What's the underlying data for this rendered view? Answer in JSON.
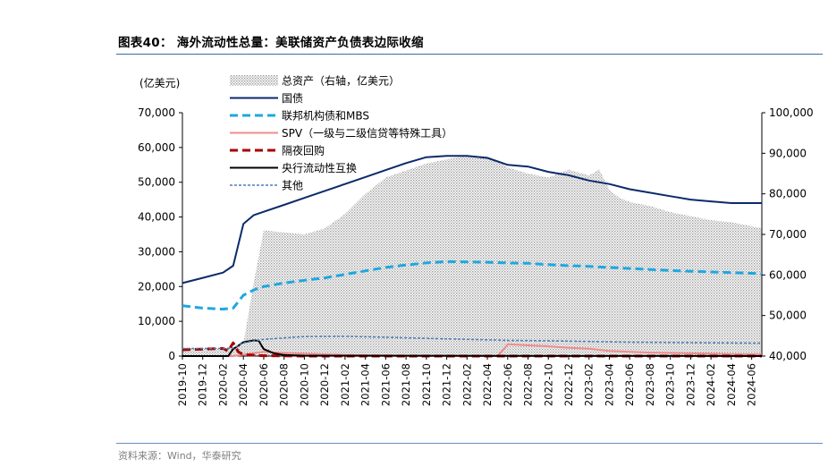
{
  "header": {
    "title": "图表40： 海外流动性总量：美联储资产负债表边际收缩",
    "source": "资料来源：Wind，华泰研究"
  },
  "chart_data": {
    "type": "line",
    "left_axis_label": "(亿美元)",
    "ylim": [
      0,
      70000
    ],
    "ylim_right": [
      40000,
      100000
    ],
    "yticks": [
      "0",
      "10,000",
      "20,000",
      "30,000",
      "40,000",
      "50,000",
      "60,000",
      "70,000"
    ],
    "yticks_right": [
      "40,000",
      "50,000",
      "60,000",
      "70,000",
      "80,000",
      "90,000",
      "100,000"
    ],
    "x_tick_labels": [
      "2019-10",
      "2019-12",
      "2020-02",
      "2020-04",
      "2020-06",
      "2020-08",
      "2020-10",
      "2020-12",
      "2021-02",
      "2021-04",
      "2021-06",
      "2021-08",
      "2021-10",
      "2021-12",
      "2022-02",
      "2022-04",
      "2022-06",
      "2022-08",
      "2022-10",
      "2022-12",
      "2023-02",
      "2023-04",
      "2023-06",
      "2023-08",
      "2023-10",
      "2023-12",
      "2024-02",
      "2024-04",
      "2024-06"
    ],
    "legend": {
      "placement": "top-left",
      "entries": [
        {
          "label": "总资产（右轴，亿美元）",
          "style": "area-dotted",
          "color": "#bdbdbd"
        },
        {
          "label": "国债",
          "style": "solid",
          "color": "#0b2a6b"
        },
        {
          "label": "联邦机构债和MBS",
          "style": "dashed",
          "color": "#1ea7e0"
        },
        {
          "label": "SPV（一级与二级信贷等特殊工具）",
          "style": "solid",
          "color": "#f28b8b"
        },
        {
          "label": "隔夜回购",
          "style": "dashed",
          "color": "#a50000"
        },
        {
          "label": "央行流动性互换",
          "style": "solid",
          "color": "#000000"
        },
        {
          "label": "其他",
          "style": "dotted",
          "color": "#4f7fb5"
        }
      ]
    },
    "x_months": [
      0,
      5,
      10,
      15,
      20,
      25,
      30,
      35,
      40,
      45,
      50,
      55,
      57
    ],
    "series": [
      {
        "name": "总资产（右轴，亿美元）",
        "axis": "right",
        "type": "area",
        "color": "#bdbdbd",
        "x": [
          0,
          3,
          5,
          6,
          7,
          8,
          10,
          12,
          14,
          16,
          18,
          20,
          24,
          28,
          30,
          31,
          32,
          34,
          36,
          38,
          40,
          41,
          42,
          43,
          44,
          46,
          48,
          50,
          52,
          54,
          56,
          57
        ],
        "values": [
          42000,
          42000,
          42000,
          43000,
          58000,
          71000,
          70500,
          70000,
          71500,
          75000,
          80000,
          84000,
          87500,
          89500,
          89200,
          88000,
          86500,
          85000,
          84000,
          86000,
          84500,
          86000,
          81000,
          79000,
          78000,
          77000,
          75500,
          74500,
          73500,
          73000,
          72000,
          71500
        ]
      },
      {
        "name": "国债",
        "axis": "left",
        "type": "line",
        "color": "#0b2a6b",
        "x": [
          0,
          2,
          4,
          5,
          6,
          7,
          8,
          10,
          12,
          14,
          16,
          18,
          20,
          22,
          24,
          26,
          28,
          30,
          32,
          34,
          36,
          38,
          40,
          42,
          44,
          46,
          48,
          50,
          52,
          54,
          56,
          57
        ],
        "values": [
          21000,
          22500,
          24000,
          26000,
          38000,
          40500,
          41500,
          43500,
          45500,
          47500,
          49500,
          51500,
          53500,
          55500,
          57200,
          57600,
          57600,
          57000,
          55000,
          54500,
          53000,
          52000,
          50500,
          49500,
          48000,
          47000,
          46000,
          45000,
          44500,
          44000,
          44000,
          44000
        ]
      },
      {
        "name": "联邦机构债和MBS",
        "axis": "left",
        "type": "line",
        "color": "#1ea7e0",
        "x": [
          0,
          2,
          4,
          5,
          6,
          7,
          8,
          10,
          12,
          14,
          16,
          18,
          20,
          22,
          24,
          26,
          28,
          30,
          32,
          34,
          36,
          38,
          40,
          42,
          44,
          46,
          48,
          50,
          52,
          54,
          56,
          57
        ],
        "values": [
          14500,
          13800,
          13500,
          13800,
          17500,
          19000,
          20000,
          21000,
          21800,
          22500,
          23500,
          24500,
          25500,
          26200,
          26800,
          27200,
          27100,
          27000,
          26800,
          26700,
          26300,
          26000,
          25800,
          25500,
          25200,
          24900,
          24600,
          24400,
          24200,
          24000,
          23800,
          23700
        ]
      },
      {
        "name": "SPV（一级与二级信贷等特殊工具）",
        "axis": "left",
        "type": "line",
        "color": "#f28b8b",
        "x": [
          0,
          5,
          6,
          8,
          10,
          12,
          14,
          16,
          20,
          24,
          28,
          31,
          32,
          34,
          36,
          38,
          40,
          42,
          44,
          46,
          48,
          50,
          52,
          54,
          56,
          57
        ],
        "values": [
          0,
          0,
          400,
          1200,
          900,
          700,
          500,
          300,
          200,
          100,
          100,
          0,
          3400,
          3100,
          2800,
          2400,
          2100,
          1500,
          1200,
          1000,
          900,
          800,
          700,
          600,
          500,
          500
        ]
      },
      {
        "name": "隔夜回购",
        "axis": "left",
        "type": "line",
        "color": "#a50000",
        "x": [
          0,
          2,
          4,
          4.5,
          5,
          5.5,
          6,
          8,
          12,
          57
        ],
        "values": [
          1800,
          2000,
          2200,
          1500,
          3800,
          1200,
          400,
          100,
          0,
          0
        ]
      },
      {
        "name": "央行流动性互换",
        "axis": "left",
        "type": "line",
        "color": "#000000",
        "x": [
          0,
          4.5,
          5,
          6,
          7,
          7.5,
          8,
          9,
          10,
          12,
          57
        ],
        "values": [
          0,
          0,
          2000,
          4000,
          4500,
          4400,
          2000,
          800,
          300,
          100,
          0
        ]
      },
      {
        "name": "其他",
        "axis": "left",
        "type": "line",
        "color": "#4f7fb5",
        "x": [
          0,
          4,
          5,
          6,
          8,
          12,
          16,
          20,
          24,
          28,
          31,
          32,
          36,
          40,
          44,
          48,
          52,
          57
        ],
        "values": [
          2200,
          2200,
          2300,
          3800,
          4800,
          5600,
          5700,
          5400,
          5100,
          4800,
          4600,
          4500,
          4400,
          4200,
          4000,
          3900,
          3800,
          3700
        ]
      }
    ]
  }
}
